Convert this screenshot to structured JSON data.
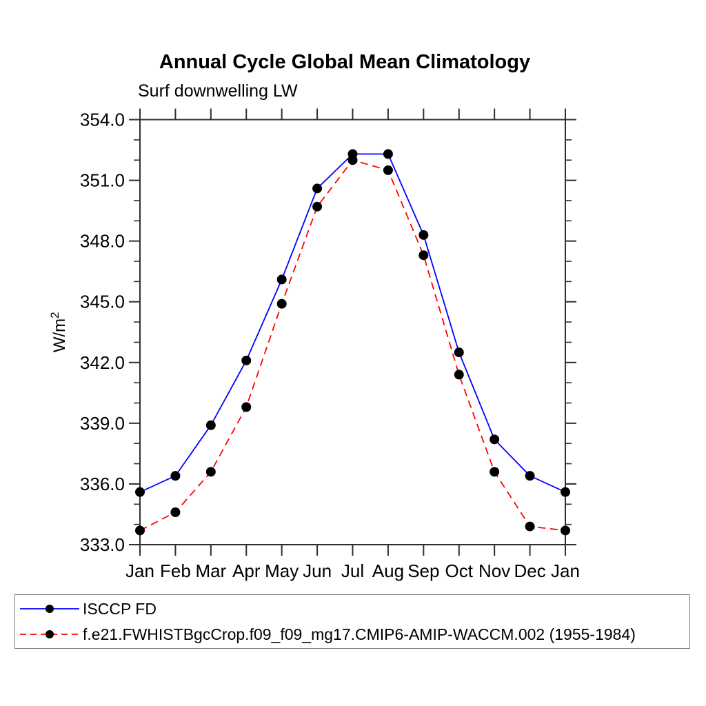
{
  "title": "Annual Cycle Global Mean Climatology",
  "subtitle": "Surf downwelling LW",
  "chart_data": {
    "type": "line",
    "categories": [
      "Jan",
      "Feb",
      "Mar",
      "Apr",
      "May",
      "Jun",
      "Jul",
      "Aug",
      "Sep",
      "Oct",
      "Nov",
      "Dec",
      "Jan"
    ],
    "series": [
      {
        "name": "ISCCP FD",
        "color": "#0000ff",
        "line_style": "solid",
        "marker": "filled-circle",
        "marker_color": "#000000",
        "values": [
          335.6,
          336.4,
          338.9,
          342.1,
          346.1,
          350.6,
          352.3,
          352.3,
          348.3,
          342.5,
          338.2,
          336.4,
          335.6
        ]
      },
      {
        "name": "f.e21.FWHISTBgcCrop.f09_f09_mg17.CMIP6-AMIP-WACCM.002 (1955-1984)",
        "color": "#ff0000",
        "line_style": "dashed",
        "marker": "filled-circle",
        "marker_color": "#000000",
        "values": [
          333.7,
          334.6,
          336.6,
          339.8,
          344.9,
          349.7,
          352.0,
          351.5,
          347.3,
          341.4,
          336.6,
          333.9,
          333.7
        ]
      }
    ],
    "ylabel": {
      "base": "W/m",
      "sup": "2"
    },
    "ylim": [
      333.0,
      354.0
    ],
    "ytick_interval": 3.0,
    "ytick_minor_interval": 1.0,
    "ytick_labels": [
      "333.0",
      "336.0",
      "339.0",
      "342.0",
      "345.0",
      "348.0",
      "351.0",
      "354.0"
    ],
    "grid": false,
    "legend_position": "bottom",
    "axis_color": "#2e2e2e"
  }
}
